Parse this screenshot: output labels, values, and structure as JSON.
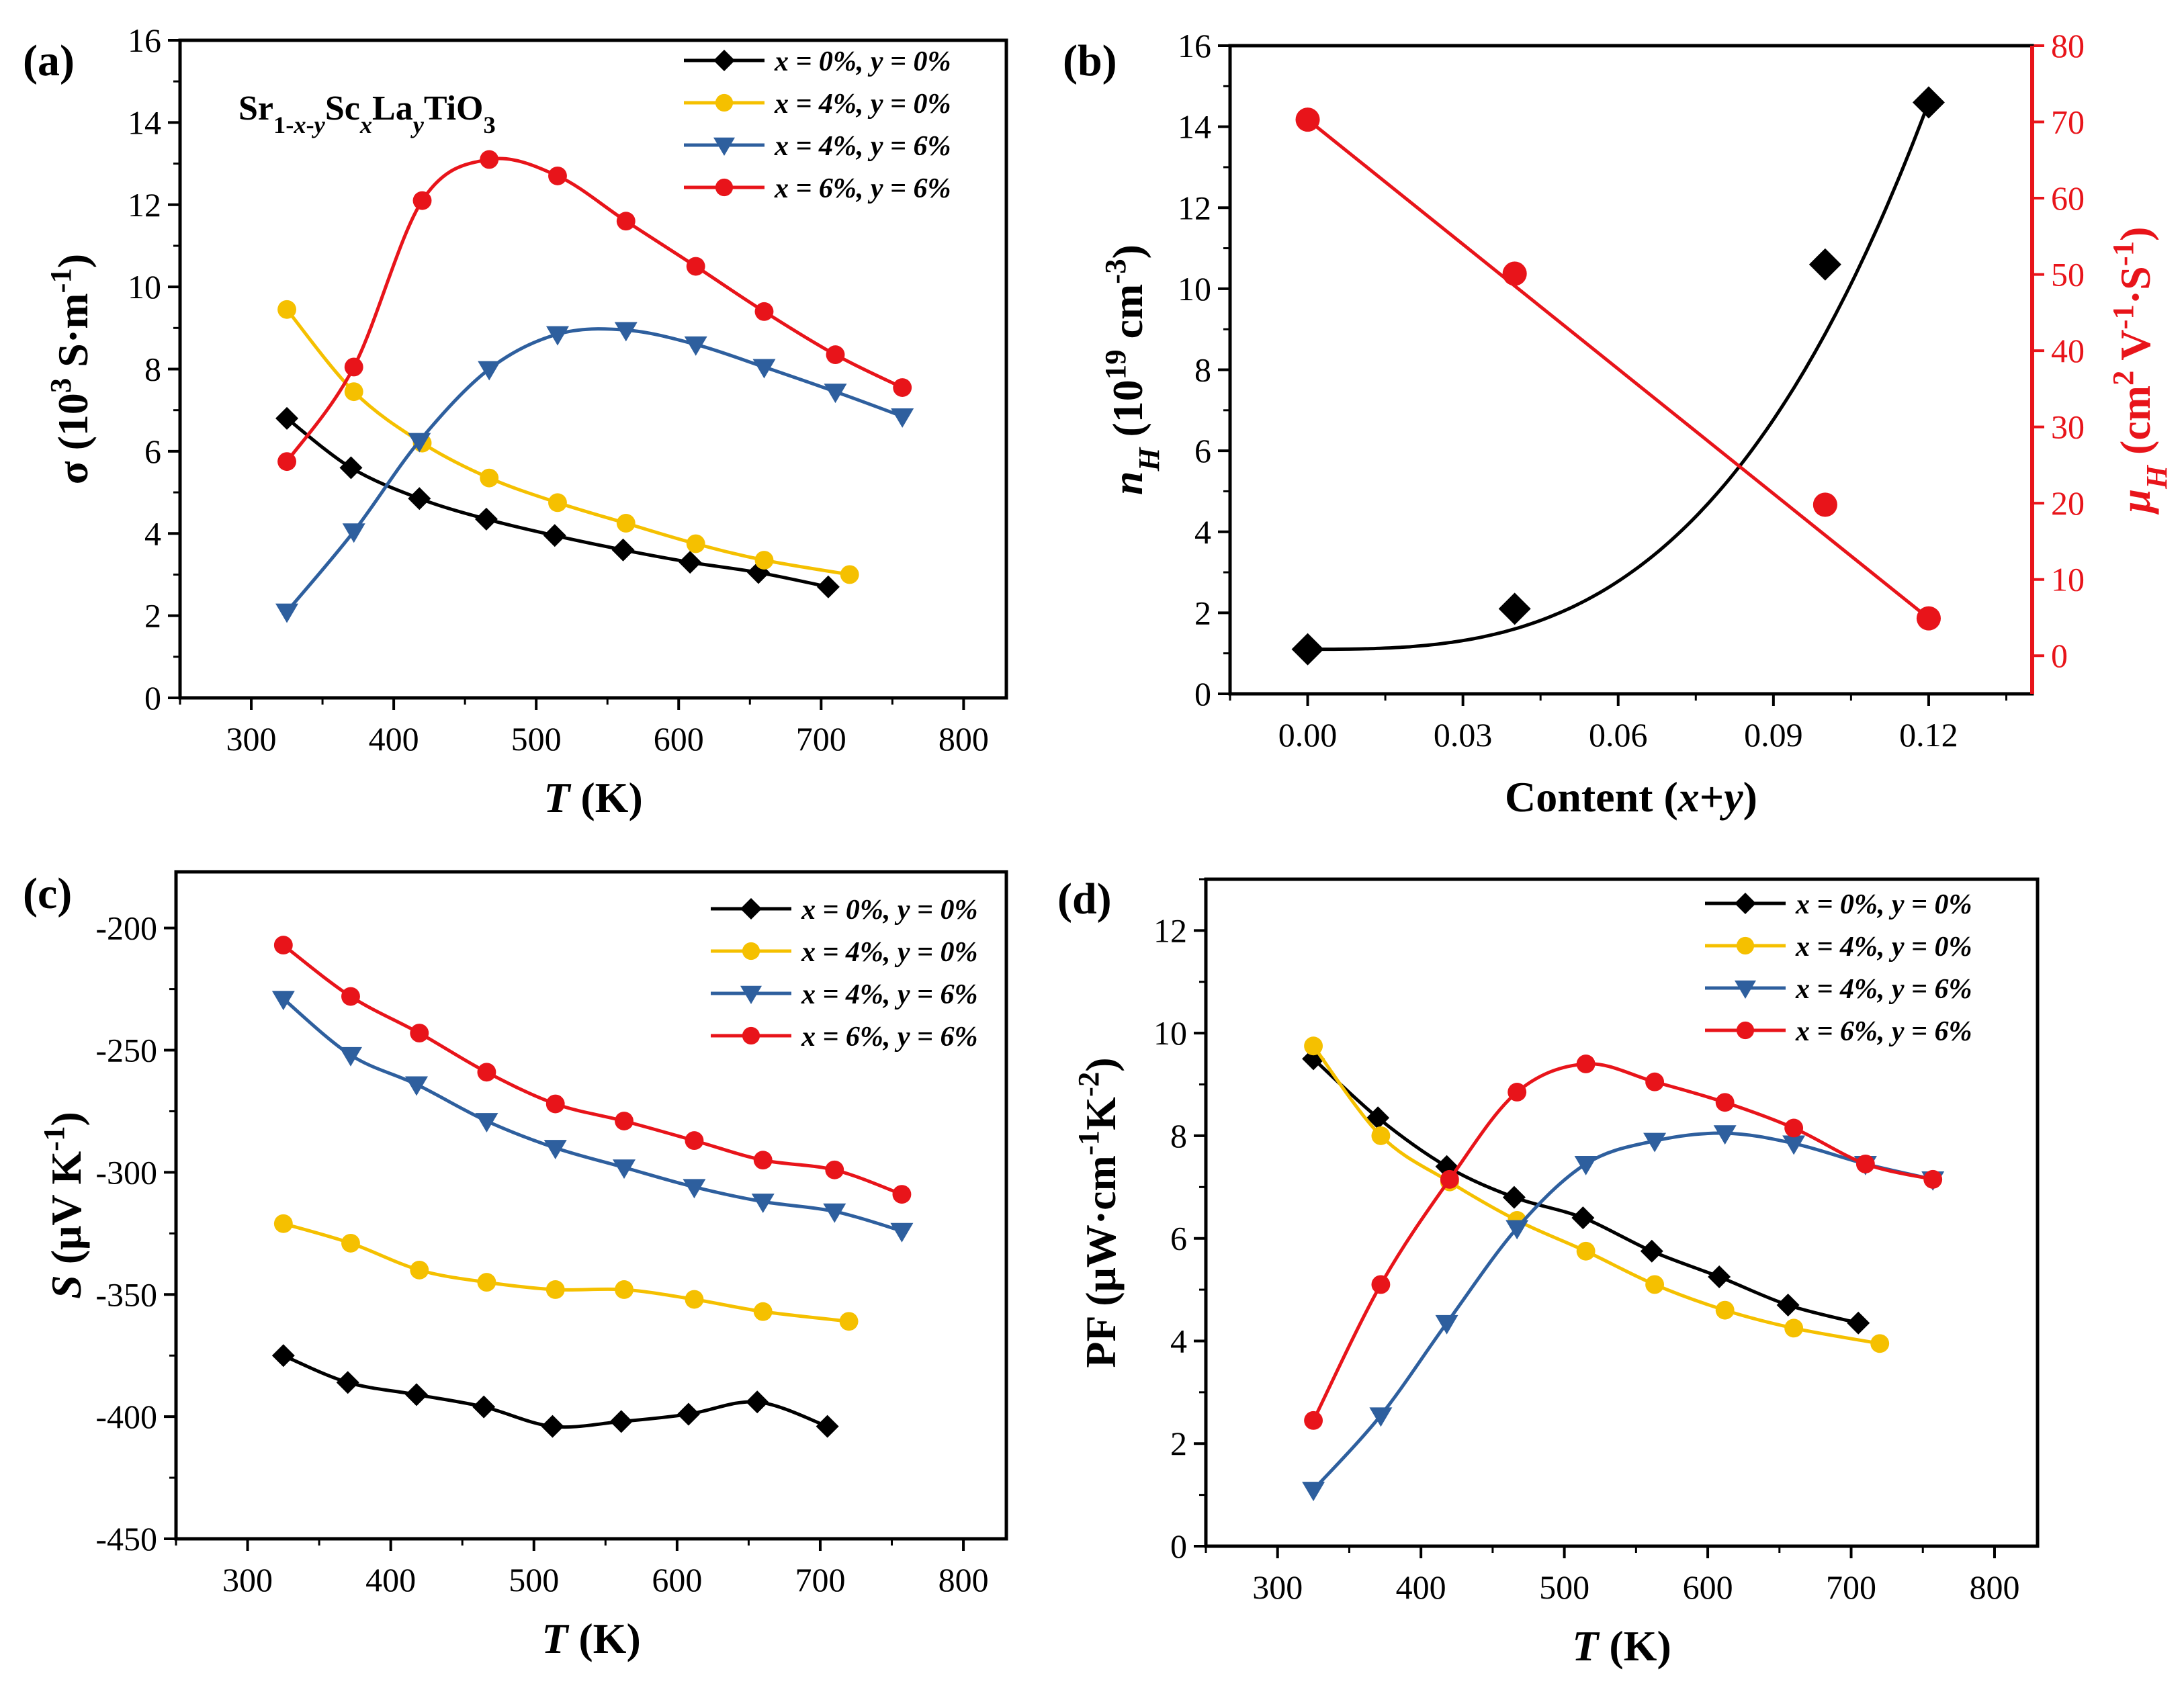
{
  "chart_data": [
    {
      "panel": "(a)",
      "type": "line",
      "annotation": "Sr1-x-yScxLayTiO3",
      "annotation_parts": [
        "Sr",
        "1-",
        "x",
        "-",
        "y",
        "Sc",
        "x",
        "La",
        "y",
        "TiO",
        "3"
      ],
      "xlabel": "T (K)",
      "xlabel_parts": [
        "T",
        " (K)"
      ],
      "ylabel": "σ (10³ S·m⁻¹)",
      "ylabel_parts": [
        "σ (10",
        "3",
        " S·m",
        "-1",
        ")"
      ],
      "xlim": [
        250,
        830
      ],
      "ylim": [
        0,
        16
      ],
      "xticks": [
        300,
        400,
        500,
        600,
        700,
        800
      ],
      "yticks": [
        0,
        2,
        4,
        6,
        8,
        10,
        12,
        14,
        16
      ],
      "legend_position": "top-right",
      "series": [
        {
          "name": "x = 0%, y = 0%",
          "color": "#000000",
          "marker": "diamond",
          "x": [
            325,
            370,
            418,
            465,
            513,
            561,
            608,
            656,
            705
          ],
          "y": [
            6.8,
            5.6,
            4.85,
            4.35,
            3.95,
            3.6,
            3.3,
            3.05,
            2.7
          ]
        },
        {
          "name": "x = 4%, y = 0%",
          "color": "#F5C000",
          "marker": "circle",
          "x": [
            325,
            372,
            420,
            467,
            515,
            563,
            612,
            660,
            720
          ],
          "y": [
            9.45,
            7.45,
            6.2,
            5.35,
            4.75,
            4.25,
            3.75,
            3.35,
            3.0
          ]
        },
        {
          "name": "x = 4%, y = 6%",
          "color": "#2E5F9E",
          "marker": "triangle-down",
          "x": [
            325,
            372,
            418,
            467,
            515,
            563,
            612,
            660,
            710,
            757
          ],
          "y": [
            2.1,
            4.05,
            6.25,
            8.0,
            8.85,
            8.95,
            8.6,
            8.05,
            7.45,
            6.85
          ]
        },
        {
          "name": "x = 6%, y = 6%",
          "color": "#E8141A",
          "marker": "circle",
          "x": [
            325,
            372,
            420,
            467,
            515,
            563,
            612,
            660,
            710,
            757
          ],
          "y": [
            5.75,
            8.05,
            12.1,
            13.1,
            12.7,
            11.6,
            10.5,
            9.4,
            8.35,
            7.55
          ]
        }
      ]
    },
    {
      "panel": "(b)",
      "type": "scatter",
      "xlabel": "Content (x+y)",
      "xlabel_parts": [
        "Content (",
        "x",
        "+",
        "y",
        ")"
      ],
      "ylabel_left": "nH (10¹⁹ cm⁻³)",
      "ylabel_left_parts": [
        "n",
        "H",
        " (10",
        "19",
        " cm",
        "-3",
        ")"
      ],
      "ylabel_right": "μH (cm² V⁻¹·S⁻¹)",
      "ylabel_right_parts": [
        "μ",
        "H",
        " (cm",
        "2",
        " V",
        "-1",
        "·S",
        "-1",
        ")"
      ],
      "xlim": [
        -0.015,
        0.14
      ],
      "ylim_left": [
        0,
        16
      ],
      "ylim_right": [
        -5,
        80
      ],
      "xticks": [
        "0.00",
        "0.03",
        "0.06",
        "0.09",
        "0.12"
      ],
      "yticks_left": [
        0,
        2,
        4,
        6,
        8,
        10,
        12,
        14,
        16
      ],
      "yticks_right": [
        0,
        10,
        20,
        30,
        40,
        50,
        60,
        70,
        80
      ],
      "right_axis_color": "#E8141A",
      "series": [
        {
          "name": "nH",
          "axis": "left",
          "color": "#000000",
          "marker": "diamond",
          "fit": "polynomial",
          "x": [
            0.0,
            0.04,
            0.1,
            0.12
          ],
          "y": [
            1.1,
            2.1,
            10.6,
            14.6
          ]
        },
        {
          "name": "μH",
          "axis": "right",
          "color": "#E8141A",
          "marker": "circle",
          "fit": "linear",
          "x": [
            0.0,
            0.04,
            0.1,
            0.12
          ],
          "y": [
            70.3,
            50.1,
            19.8,
            4.9
          ]
        }
      ]
    },
    {
      "panel": "(c)",
      "type": "line",
      "xlabel": "T (K)",
      "xlabel_parts": [
        "T",
        " (K)"
      ],
      "ylabel": "S (μV K⁻¹)",
      "ylabel_parts": [
        "S",
        " (μV K",
        "-1",
        ")"
      ],
      "xlim": [
        250,
        830
      ],
      "ylim": [
        -450,
        -177
      ],
      "xticks": [
        300,
        400,
        500,
        600,
        700,
        800
      ],
      "yticks": [
        -450,
        -400,
        -350,
        -300,
        -250,
        -200
      ],
      "legend_position": "top-right",
      "series": [
        {
          "name": "x = 0%, y = 0%",
          "color": "#000000",
          "marker": "diamond",
          "x": [
            325,
            370,
            418,
            465,
            513,
            561,
            608,
            656,
            705
          ],
          "y": [
            -375,
            -386,
            -391,
            -396,
            -404,
            -402,
            -399,
            -394,
            -404
          ]
        },
        {
          "name": "x = 4%, y = 0%",
          "color": "#F5C000",
          "marker": "circle",
          "x": [
            325,
            372,
            420,
            467,
            515,
            563,
            612,
            660,
            720
          ],
          "y": [
            -321,
            -329,
            -340,
            -345,
            -348,
            -348,
            -352,
            -357,
            -361
          ]
        },
        {
          "name": "x = 4%, y = 6%",
          "color": "#2E5F9E",
          "marker": "triangle-down",
          "x": [
            325,
            372,
            418,
            467,
            515,
            563,
            612,
            660,
            710,
            757
          ],
          "y": [
            -229,
            -252,
            -264,
            -279,
            -290,
            -298,
            -306,
            -312,
            -316,
            -324
          ]
        },
        {
          "name": "x = 6%, y = 6%",
          "color": "#E8141A",
          "marker": "circle",
          "x": [
            325,
            372,
            420,
            467,
            515,
            563,
            612,
            660,
            710,
            757
          ],
          "y": [
            -207,
            -228,
            -243,
            -259,
            -272,
            -279,
            -287,
            -295,
            -299,
            -309
          ]
        }
      ]
    },
    {
      "panel": "(d)",
      "type": "line",
      "xlabel": "T (K)",
      "xlabel_parts": [
        "T",
        " (K)"
      ],
      "ylabel": "PF (μW·cm⁻¹K⁻²)",
      "ylabel_parts": [
        "PF (μW·cm",
        "-1",
        "K",
        "-2",
        ")"
      ],
      "xlim": [
        250,
        830
      ],
      "ylim": [
        0,
        13
      ],
      "xticks": [
        300,
        400,
        500,
        600,
        700,
        800
      ],
      "yticks": [
        0,
        2,
        4,
        6,
        8,
        10,
        12
      ],
      "legend_position": "top-right",
      "series": [
        {
          "name": "x = 0%, y = 0%",
          "color": "#000000",
          "marker": "diamond",
          "x": [
            325,
            370,
            418,
            465,
            513,
            561,
            608,
            656,
            705
          ],
          "y": [
            9.5,
            8.35,
            7.4,
            6.8,
            6.4,
            5.75,
            5.25,
            4.7,
            4.35
          ]
        },
        {
          "name": "x = 4%, y = 0%",
          "color": "#F5C000",
          "marker": "circle",
          "x": [
            325,
            372,
            420,
            467,
            515,
            563,
            612,
            660,
            720
          ],
          "y": [
            9.75,
            8.0,
            7.1,
            6.35,
            5.75,
            5.1,
            4.6,
            4.25,
            3.95
          ]
        },
        {
          "name": "x = 4%, y = 6%",
          "color": "#2E5F9E",
          "marker": "triangle-down",
          "x": [
            325,
            372,
            418,
            467,
            515,
            563,
            612,
            660,
            710,
            757
          ],
          "y": [
            1.1,
            2.55,
            4.35,
            6.2,
            7.45,
            7.9,
            8.05,
            7.85,
            7.45,
            7.15
          ]
        },
        {
          "name": "x = 6%, y = 6%",
          "color": "#E8141A",
          "marker": "circle",
          "x": [
            325,
            372,
            420,
            467,
            515,
            563,
            612,
            660,
            710,
            757
          ],
          "y": [
            2.45,
            5.1,
            7.15,
            8.85,
            9.4,
            9.05,
            8.65,
            8.15,
            7.45,
            7.15
          ]
        }
      ]
    }
  ]
}
